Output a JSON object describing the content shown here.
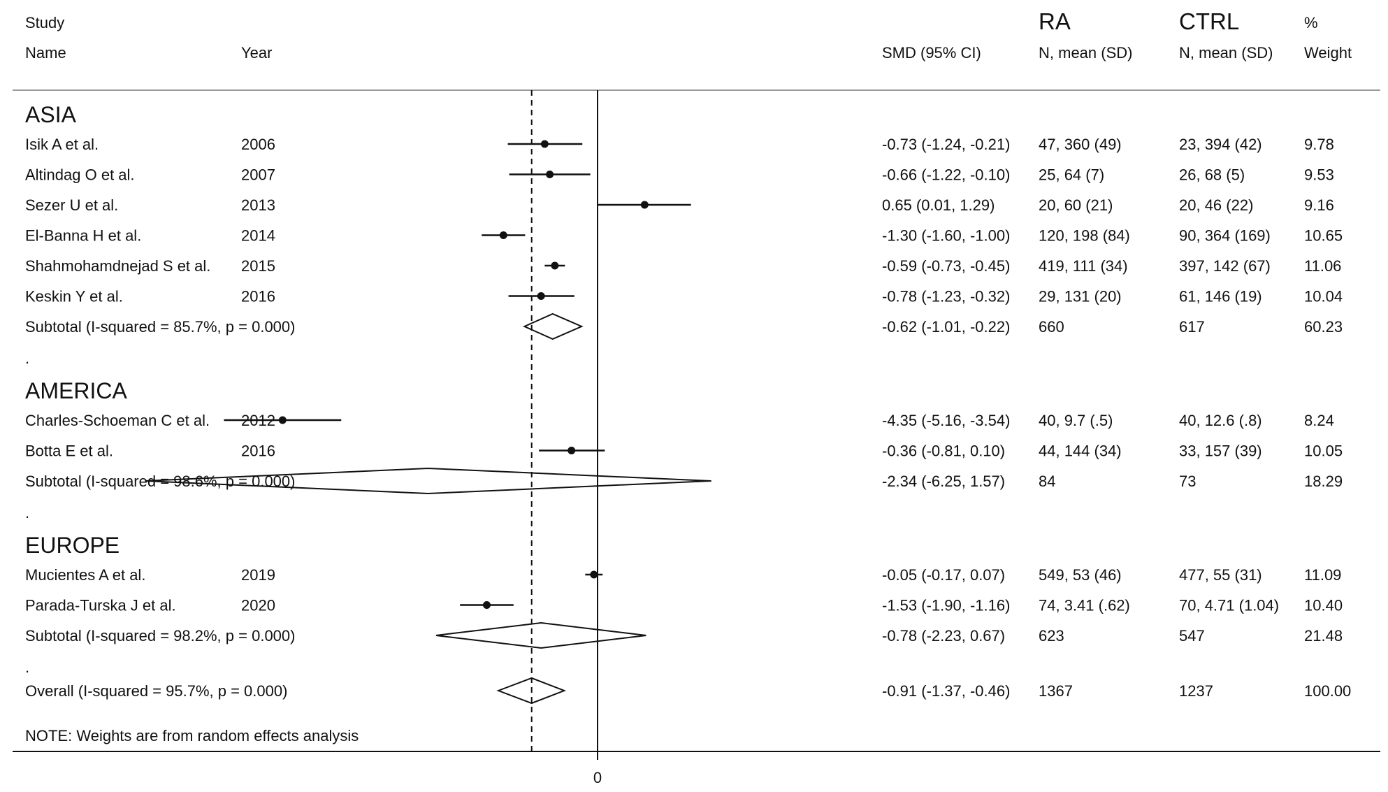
{
  "chart_data": {
    "type": "forest",
    "header": {
      "study_line1": "Study",
      "study_line2": "Name",
      "year": "Year",
      "smd": "SMD (95% CI)",
      "ra_line1": "RA",
      "ra_line2": "N, mean (SD)",
      "ctrl_line1": "CTRL",
      "ctrl_line2": "N, mean (SD)",
      "weight_line1": "%",
      "weight_line2": "Weight"
    },
    "groups": [
      {
        "name": "ASIA",
        "studies": [
          {
            "name": "Isik A et al.",
            "year": "2006",
            "smd": -0.73,
            "lo": -1.24,
            "hi": -0.21,
            "smd_text": "-0.73 (-1.24, -0.21)",
            "ra": "47, 360 (49)",
            "ctrl": "23, 394 (42)",
            "weight": "9.78"
          },
          {
            "name": "Altindag O et al.",
            "year": "2007",
            "smd": -0.66,
            "lo": -1.22,
            "hi": -0.1,
            "smd_text": "-0.66 (-1.22, -0.10)",
            "ra": "25, 64 (7)",
            "ctrl": "26, 68 (5)",
            "weight": "9.53"
          },
          {
            "name": "Sezer U et al.",
            "year": "2013",
            "smd": 0.65,
            "lo": 0.01,
            "hi": 1.29,
            "smd_text": "0.65 (0.01, 1.29)",
            "ra": "20, 60 (21)",
            "ctrl": "20, 46 (22)",
            "weight": "9.16"
          },
          {
            "name": "El-Banna H et al.",
            "year": "2014",
            "smd": -1.3,
            "lo": -1.6,
            "hi": -1.0,
            "smd_text": "-1.30 (-1.60, -1.00)",
            "ra": "120, 198 (84)",
            "ctrl": "90, 364 (169)",
            "weight": "10.65"
          },
          {
            "name": "Shahmohamdnejad S et al.",
            "year": "2015",
            "smd": -0.59,
            "lo": -0.73,
            "hi": -0.45,
            "smd_text": "-0.59 (-0.73, -0.45)",
            "ra": "419, 111 (34)",
            "ctrl": "397, 142 (67)",
            "weight": "11.06"
          },
          {
            "name": "Keskin Y et al.",
            "year": "2016",
            "smd": -0.78,
            "lo": -1.23,
            "hi": -0.32,
            "smd_text": "-0.78 (-1.23, -0.32)",
            "ra": "29, 131 (20)",
            "ctrl": "61, 146 (19)",
            "weight": "10.04"
          }
        ],
        "subtotal": {
          "label": "Subtotal  (I-squared = 85.7%, p = 0.000)",
          "smd": -0.62,
          "lo": -1.01,
          "hi": -0.22,
          "smd_text": "-0.62 (-1.01, -0.22)",
          "ra": "660",
          "ctrl": "617",
          "weight": "60.23"
        }
      },
      {
        "name": "AMERICA",
        "studies": [
          {
            "name": "Charles-Schoeman C et al.",
            "year": "2012",
            "smd": -4.35,
            "lo": -5.16,
            "hi": -3.54,
            "smd_text": "-4.35 (-5.16, -3.54)",
            "ra": "40, 9.7 (.5)",
            "ctrl": "40, 12.6 (.8)",
            "weight": "8.24"
          },
          {
            "name": "Botta E et al.",
            "year": "2016",
            "smd": -0.36,
            "lo": -0.81,
            "hi": 0.1,
            "smd_text": "-0.36 (-0.81, 0.10)",
            "ra": "44, 144 (34)",
            "ctrl": "33, 157 (39)",
            "weight": "10.05"
          }
        ],
        "subtotal": {
          "label": "Subtotal  (I-squared = 98.6%, p = 0.000)",
          "smd": -2.34,
          "lo": -6.25,
          "hi": 1.57,
          "smd_text": "-2.34 (-6.25, 1.57)",
          "ra": "84",
          "ctrl": "73",
          "weight": "18.29"
        }
      },
      {
        "name": "EUROPE",
        "studies": [
          {
            "name": "Mucientes A et al.",
            "year": "2019",
            "smd": -0.05,
            "lo": -0.17,
            "hi": 0.07,
            "smd_text": "-0.05 (-0.17, 0.07)",
            "ra": "549, 53 (46)",
            "ctrl": "477, 55 (31)",
            "weight": "11.09"
          },
          {
            "name": "Parada-Turska J et al.",
            "year": "2020",
            "smd": -1.53,
            "lo": -1.9,
            "hi": -1.16,
            "smd_text": "-1.53 (-1.90, -1.16)",
            "ra": "74, 3.41 (.62)",
            "ctrl": "70, 4.71 (1.04)",
            "weight": "10.40"
          }
        ],
        "subtotal": {
          "label": "Subtotal  (I-squared = 98.2%, p = 0.000)",
          "smd": -0.78,
          "lo": -2.23,
          "hi": 0.67,
          "smd_text": "-0.78 (-2.23, 0.67)",
          "ra": "623",
          "ctrl": "547",
          "weight": "21.48"
        }
      }
    ],
    "overall": {
      "label": "Overall  (I-squared = 95.7%, p = 0.000)",
      "smd": -0.91,
      "lo": -1.37,
      "hi": -0.46,
      "smd_text": "-0.91 (-1.37, -0.46)",
      "ra": "1367",
      "ctrl": "1237",
      "weight": "100.00"
    },
    "group_separator": ".",
    "note": "NOTE: Weights are from random effects analysis",
    "x_ticks": [
      0
    ],
    "x_tick_labels": [
      "0"
    ],
    "reference_line": 0,
    "dashed_line_at": -0.91
  }
}
